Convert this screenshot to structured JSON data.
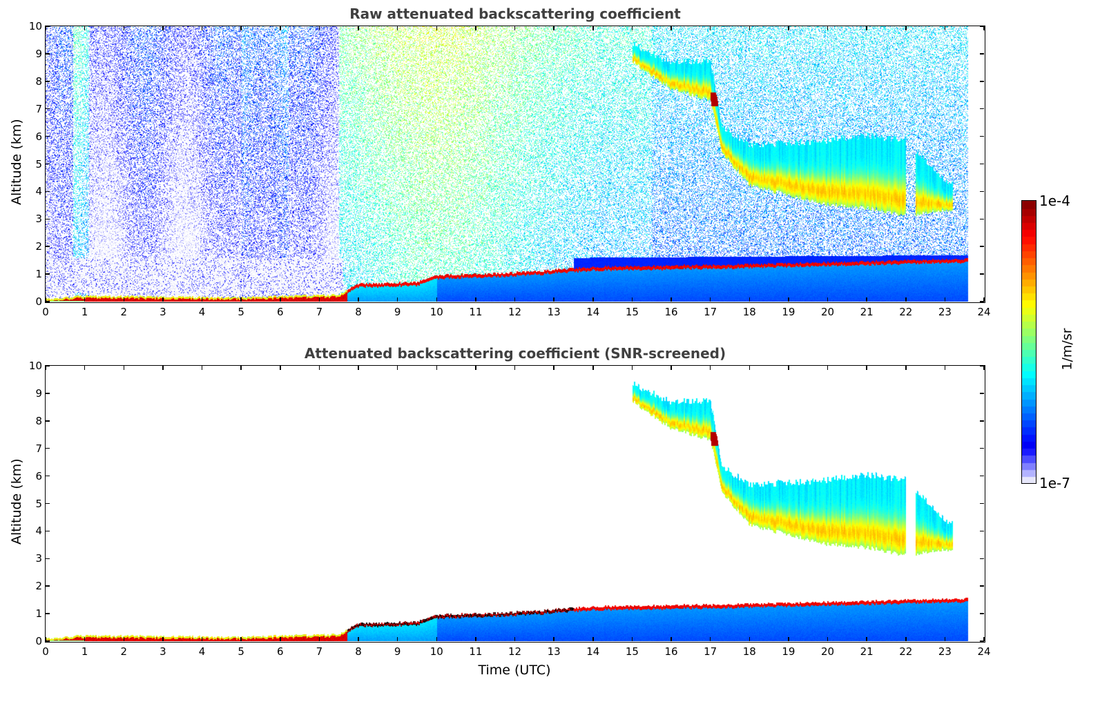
{
  "chart_data": [
    {
      "type": "heatmap",
      "title": "Raw attenuated backscattering coefficient",
      "xlabel": "",
      "ylabel": "Altitude (km)",
      "xlim": [
        0,
        24
      ],
      "ylim": [
        0,
        10
      ],
      "xticks": [
        "0",
        "1",
        "2",
        "3",
        "4",
        "5",
        "6",
        "7",
        "8",
        "9",
        "10",
        "11",
        "12",
        "13",
        "14",
        "15",
        "16",
        "17",
        "18",
        "19",
        "20",
        "21",
        "22",
        "23",
        "24"
      ],
      "yticks": [
        "0",
        "1",
        "2",
        "3",
        "4",
        "5",
        "6",
        "7",
        "8",
        "9",
        "10"
      ],
      "data_end_hour": 23.6,
      "screened": false,
      "features": {
        "boundary_layer_top_km": [
          [
            0,
            0.15
          ],
          [
            1,
            0.25
          ],
          [
            5,
            0.2
          ],
          [
            7.5,
            0.3
          ],
          [
            8,
            0.7
          ],
          [
            9.5,
            0.75
          ],
          [
            10,
            1.0
          ],
          [
            12,
            1.1
          ],
          [
            14,
            1.3
          ],
          [
            18,
            1.4
          ],
          [
            23.6,
            1.6
          ]
        ],
        "cirrus_base_km": [
          [
            15,
            8.8
          ],
          [
            16,
            7.8
          ],
          [
            17,
            7.4
          ],
          [
            17.3,
            5.5
          ],
          [
            18,
            4.3
          ],
          [
            20,
            3.6
          ],
          [
            21,
            3.5
          ],
          [
            22,
            3.2
          ],
          [
            23,
            3.4
          ]
        ],
        "cirrus_top_km": [
          [
            15,
            9.5
          ],
          [
            16,
            8.8
          ],
          [
            17,
            8.9
          ],
          [
            17.3,
            6.5
          ],
          [
            18,
            5.8
          ],
          [
            20,
            6.0
          ],
          [
            21,
            6.2
          ],
          [
            22,
            6.0
          ],
          [
            23,
            4.5
          ]
        ]
      }
    },
    {
      "type": "heatmap",
      "title": "Attenuated backscattering coefficient (SNR-screened)",
      "xlabel": "Time (UTC)",
      "ylabel": "Altitude (km)",
      "xlim": [
        0,
        24
      ],
      "ylim": [
        0,
        10
      ],
      "xticks": [
        "0",
        "1",
        "2",
        "3",
        "4",
        "5",
        "6",
        "7",
        "8",
        "9",
        "10",
        "11",
        "12",
        "13",
        "14",
        "15",
        "16",
        "17",
        "18",
        "19",
        "20",
        "21",
        "22",
        "23",
        "24"
      ],
      "yticks": [
        "0",
        "1",
        "2",
        "3",
        "4",
        "5",
        "6",
        "7",
        "8",
        "9",
        "10"
      ],
      "data_end_hour": 23.6,
      "screened": true
    }
  ],
  "colorbar": {
    "min_label": "1e-7",
    "max_label": "1e-4",
    "unit": "1/m/sr",
    "colormap": "jet",
    "low_colors": [
      "#e6e6fa",
      "#b3b3ff",
      "#8080ff",
      "#4d4dff",
      "#1a1aff"
    ]
  }
}
